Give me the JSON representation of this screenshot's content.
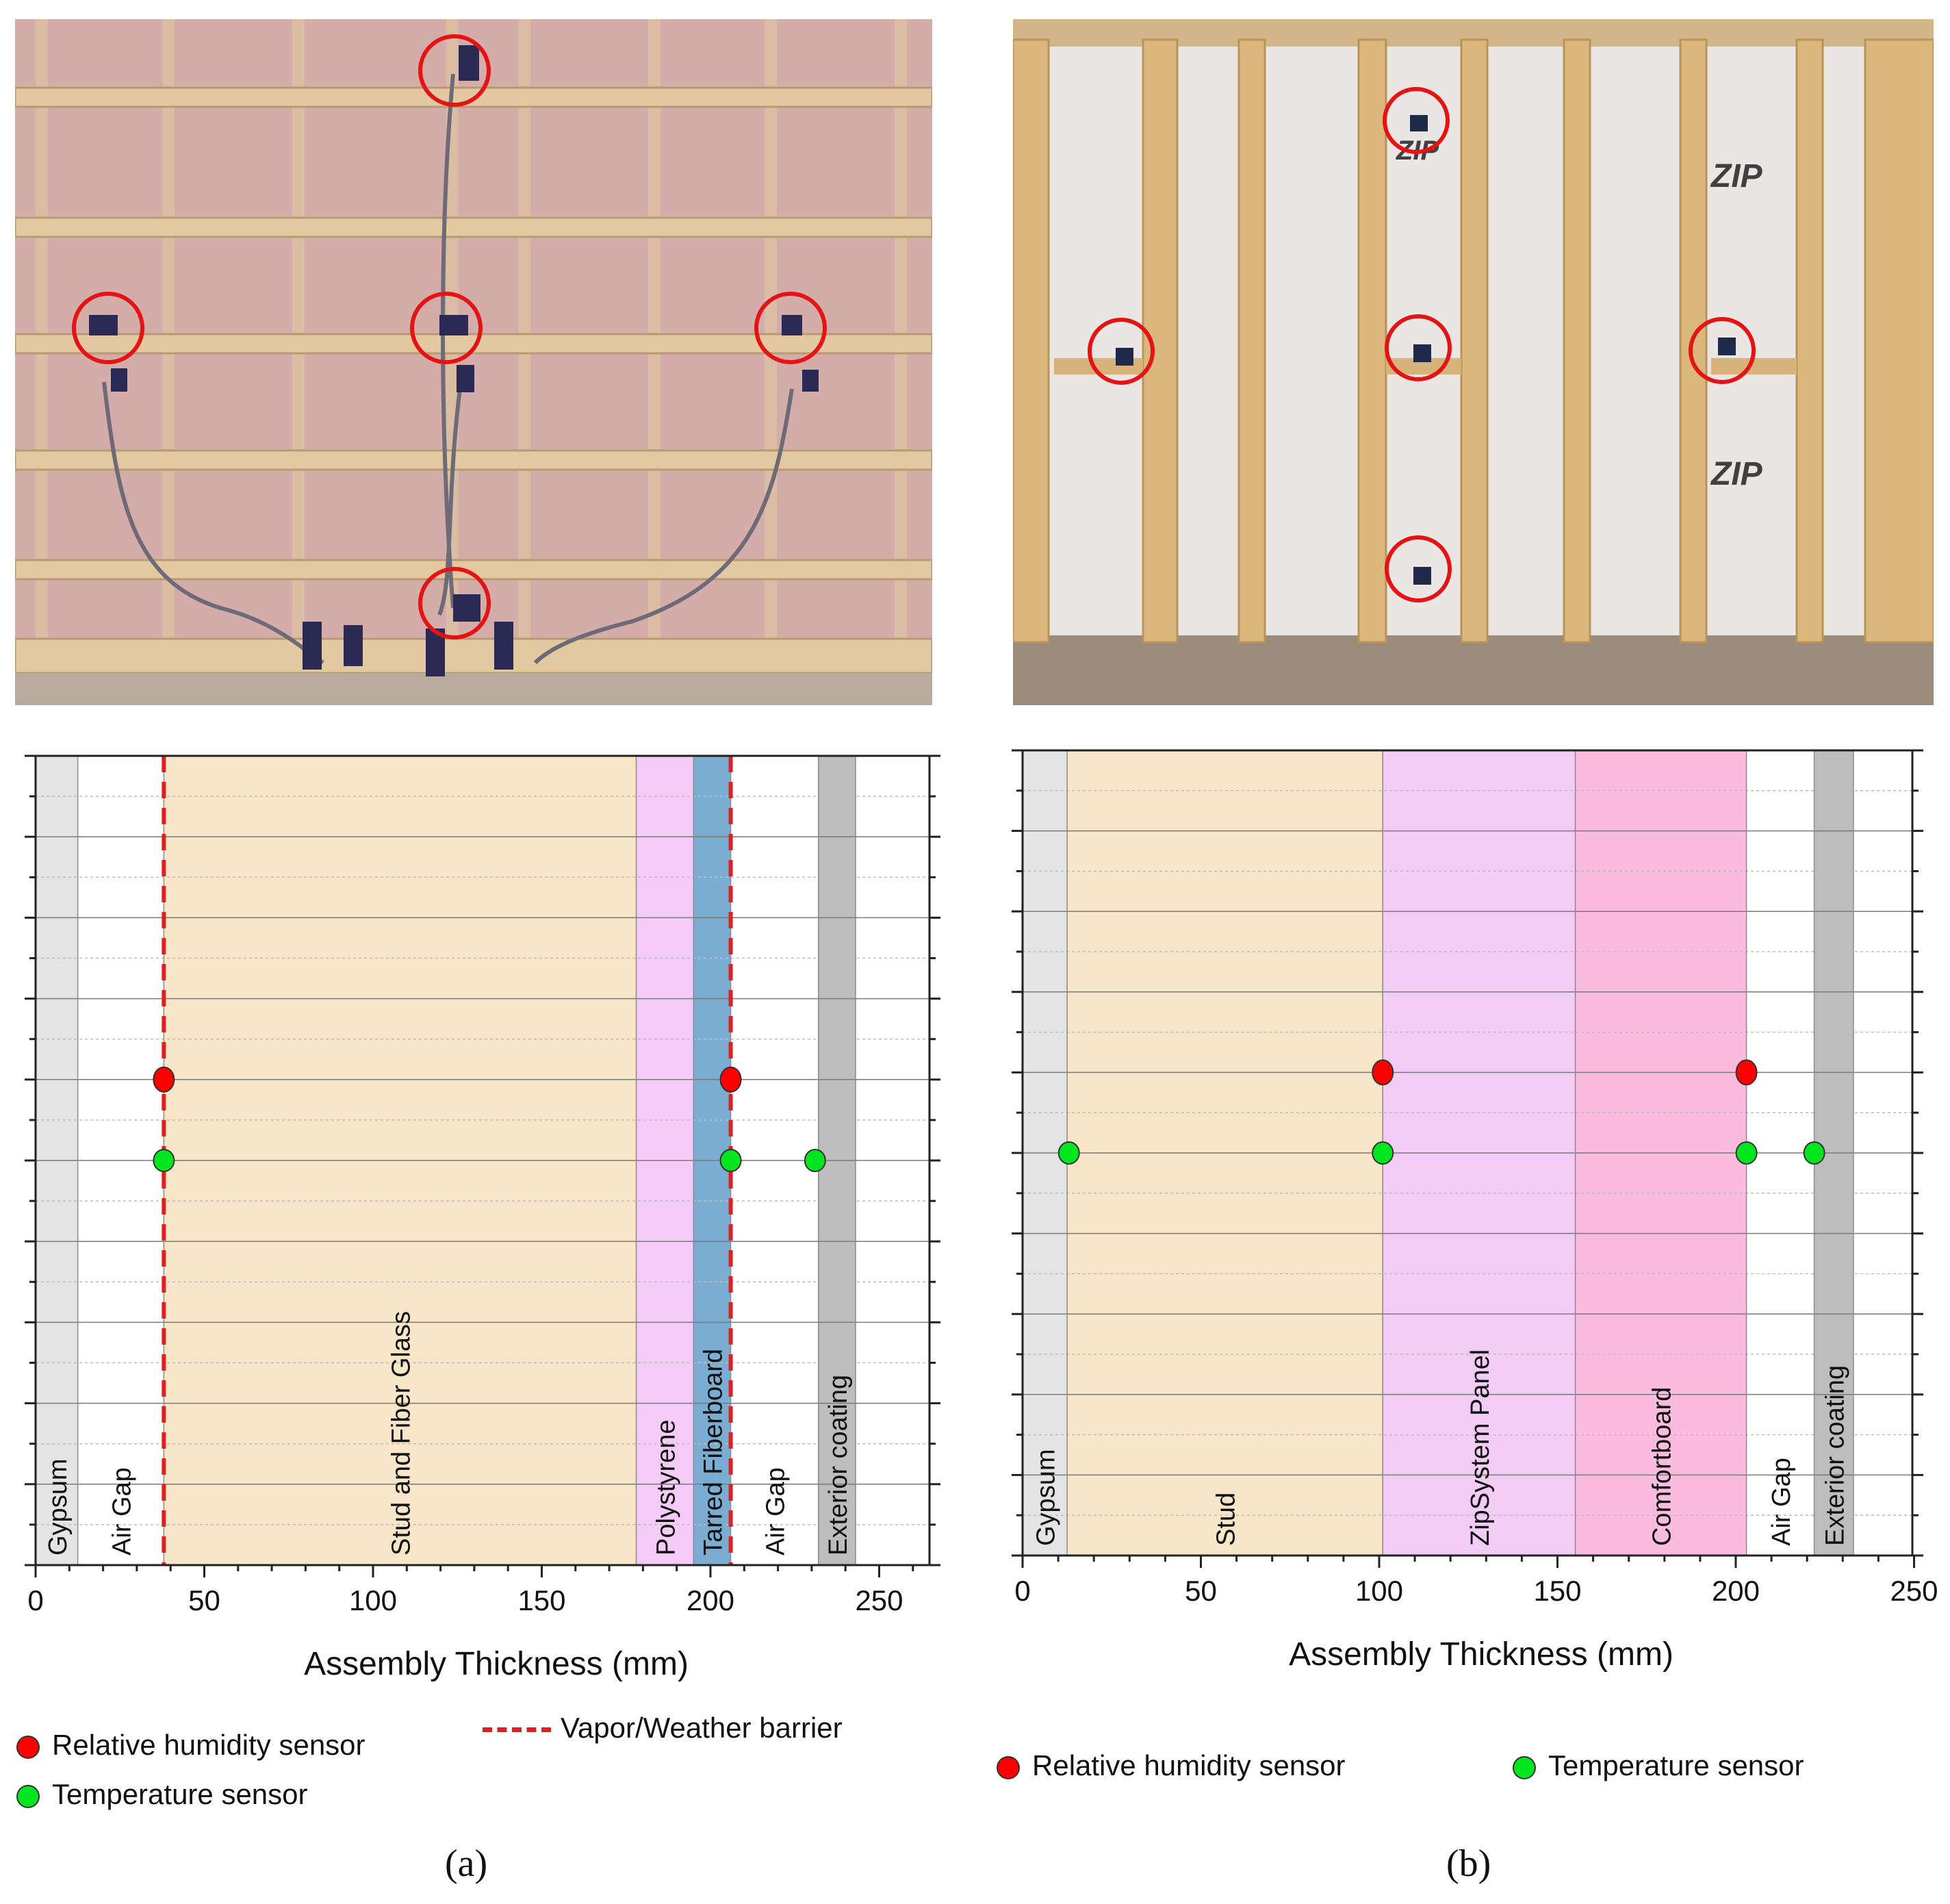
{
  "captions": {
    "a": "(a)",
    "b": "(b)"
  },
  "colors": {
    "gypsum": "#e4e4e4",
    "air_gap": "#ffffff",
    "stud_fiber": "#f7e7c8",
    "polystyrene": "#f4ccf7",
    "tarred_fiberboard": "#7badd2",
    "exterior_coating": "#bdbdbd",
    "zipsystem": "#f3ccf6",
    "comfortboard": "#fbbbdf",
    "rh_sensor": "#ff0000",
    "temp_sensor": "#00e61f",
    "barrier": "#e02020"
  },
  "legend_a": {
    "rh": "Relative humidity sensor",
    "temp": "Temperature sensor",
    "barrier": "Vapor/Weather barrier"
  },
  "legend_b": {
    "rh": "Relative humidity sensor",
    "temp": "Temperature sensor"
  },
  "chart_data": [
    {
      "type": "scatter",
      "id": "a",
      "xlabel": "Assembly Thickness (mm)",
      "xlim": [
        0,
        265
      ],
      "xticks": [
        0,
        50,
        100,
        150,
        200,
        250
      ],
      "ylim": [
        0,
        10
      ],
      "grid": true,
      "layers": [
        {
          "name": "Gypsum",
          "from": 0,
          "to": 12.5,
          "color": "gypsum"
        },
        {
          "name": "Air Gap",
          "from": 12.5,
          "to": 38,
          "color": "air_gap"
        },
        {
          "name": "Stud and Fiber Glass",
          "from": 38,
          "to": 178,
          "color": "stud_fiber"
        },
        {
          "name": "Polystyrene",
          "from": 178,
          "to": 195,
          "color": "polystyrene"
        },
        {
          "name": "Tarred Fiberboard",
          "from": 195,
          "to": 206,
          "color": "tarred_fiberboard"
        },
        {
          "name": "Air Gap",
          "from": 206,
          "to": 232,
          "color": "air_gap"
        },
        {
          "name": "Exterior coating",
          "from": 232,
          "to": 243,
          "color": "exterior_coating"
        }
      ],
      "barriers": [
        38,
        206
      ],
      "rh_sensors": [
        {
          "x": 38,
          "y": 6
        },
        {
          "x": 206,
          "y": 6
        }
      ],
      "temp_sensors": [
        {
          "x": 38,
          "y": 5
        },
        {
          "x": 206,
          "y": 5
        },
        {
          "x": 231,
          "y": 5
        }
      ]
    },
    {
      "type": "scatter",
      "id": "b",
      "xlabel": "Assembly Thickness (mm)",
      "xlim": [
        0,
        250
      ],
      "xticks": [
        0,
        50,
        100,
        150,
        200,
        250
      ],
      "ylim": [
        0,
        10
      ],
      "grid": true,
      "layers": [
        {
          "name": "Gypsum",
          "from": 0,
          "to": 12.5,
          "color": "gypsum"
        },
        {
          "name": "Stud",
          "from": 12.5,
          "to": 101,
          "color": "stud_fiber"
        },
        {
          "name": "ZipSystem Panel",
          "from": 101,
          "to": 155,
          "color": "zipsystem"
        },
        {
          "name": "Comfortboard",
          "from": 155,
          "to": 203,
          "color": "comfortboard"
        },
        {
          "name": "Air Gap",
          "from": 203,
          "to": 222,
          "color": "air_gap"
        },
        {
          "name": "Exterior coating",
          "from": 222,
          "to": 233,
          "color": "exterior_coating"
        }
      ],
      "rh_sensors": [
        {
          "x": 101,
          "y": 6
        },
        {
          "x": 203,
          "y": 6
        }
      ],
      "temp_sensors": [
        {
          "x": 13,
          "y": 5
        },
        {
          "x": 101,
          "y": 5
        },
        {
          "x": 203,
          "y": 5
        },
        {
          "x": 222,
          "y": 5
        }
      ]
    }
  ]
}
